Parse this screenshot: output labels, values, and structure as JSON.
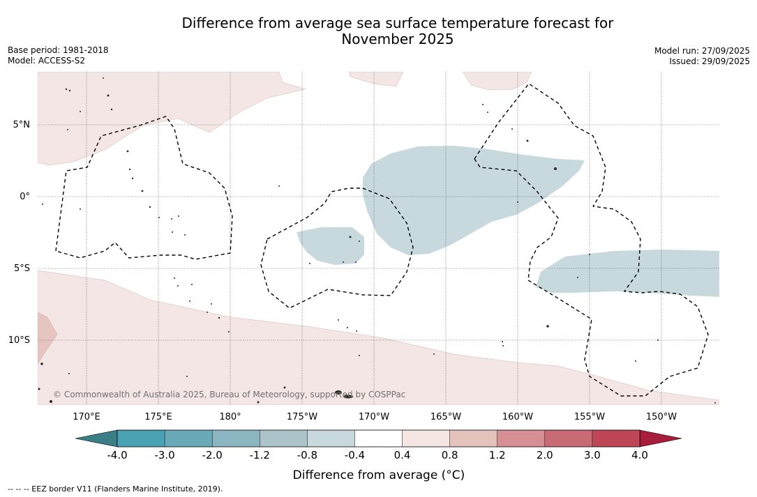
{
  "title_line1": "Difference from average sea surface temperature forecast for",
  "title_line2": "November 2025",
  "base_period": "Base period: 1981-2018",
  "model": "Model: ACCESS-S2",
  "model_run": "Model run: 27/09/2025",
  "issued": "Issued: 29/09/2025",
  "map": {
    "lat_labels": [
      "5°N",
      "0°",
      "5°S",
      "10°S"
    ],
    "lon_labels": [
      "170°E",
      "175°E",
      "180°",
      "175°W",
      "170°W",
      "165°W",
      "160°W",
      "155°W",
      "150°W"
    ],
    "copyright": "© Commonwealth of Australia 2025, Bureau of Meteorology, supported by COSPPac"
  },
  "colorbar": {
    "ticks": [
      "-4.0",
      "-3.0",
      "-2.0",
      "-1.2",
      "-0.8",
      "-0.4",
      "0.4",
      "0.8",
      "1.2",
      "2.0",
      "3.0",
      "4.0"
    ],
    "colors": [
      "#4aa1b3",
      "#69a9b8",
      "#8bb5c0",
      "#aac4ca",
      "#c7d9dc",
      "#ffffff",
      "#f5e6e4",
      "#e5c3bd",
      "#d68f94",
      "#c86b74",
      "#be4657"
    ],
    "under_color": "#3a7f85",
    "over_color": "#a81c3c",
    "title": "Difference from average (°C)"
  },
  "footer": "--  --  -- EEZ border V11 (Flanders Marine Institute, 2019)."
}
